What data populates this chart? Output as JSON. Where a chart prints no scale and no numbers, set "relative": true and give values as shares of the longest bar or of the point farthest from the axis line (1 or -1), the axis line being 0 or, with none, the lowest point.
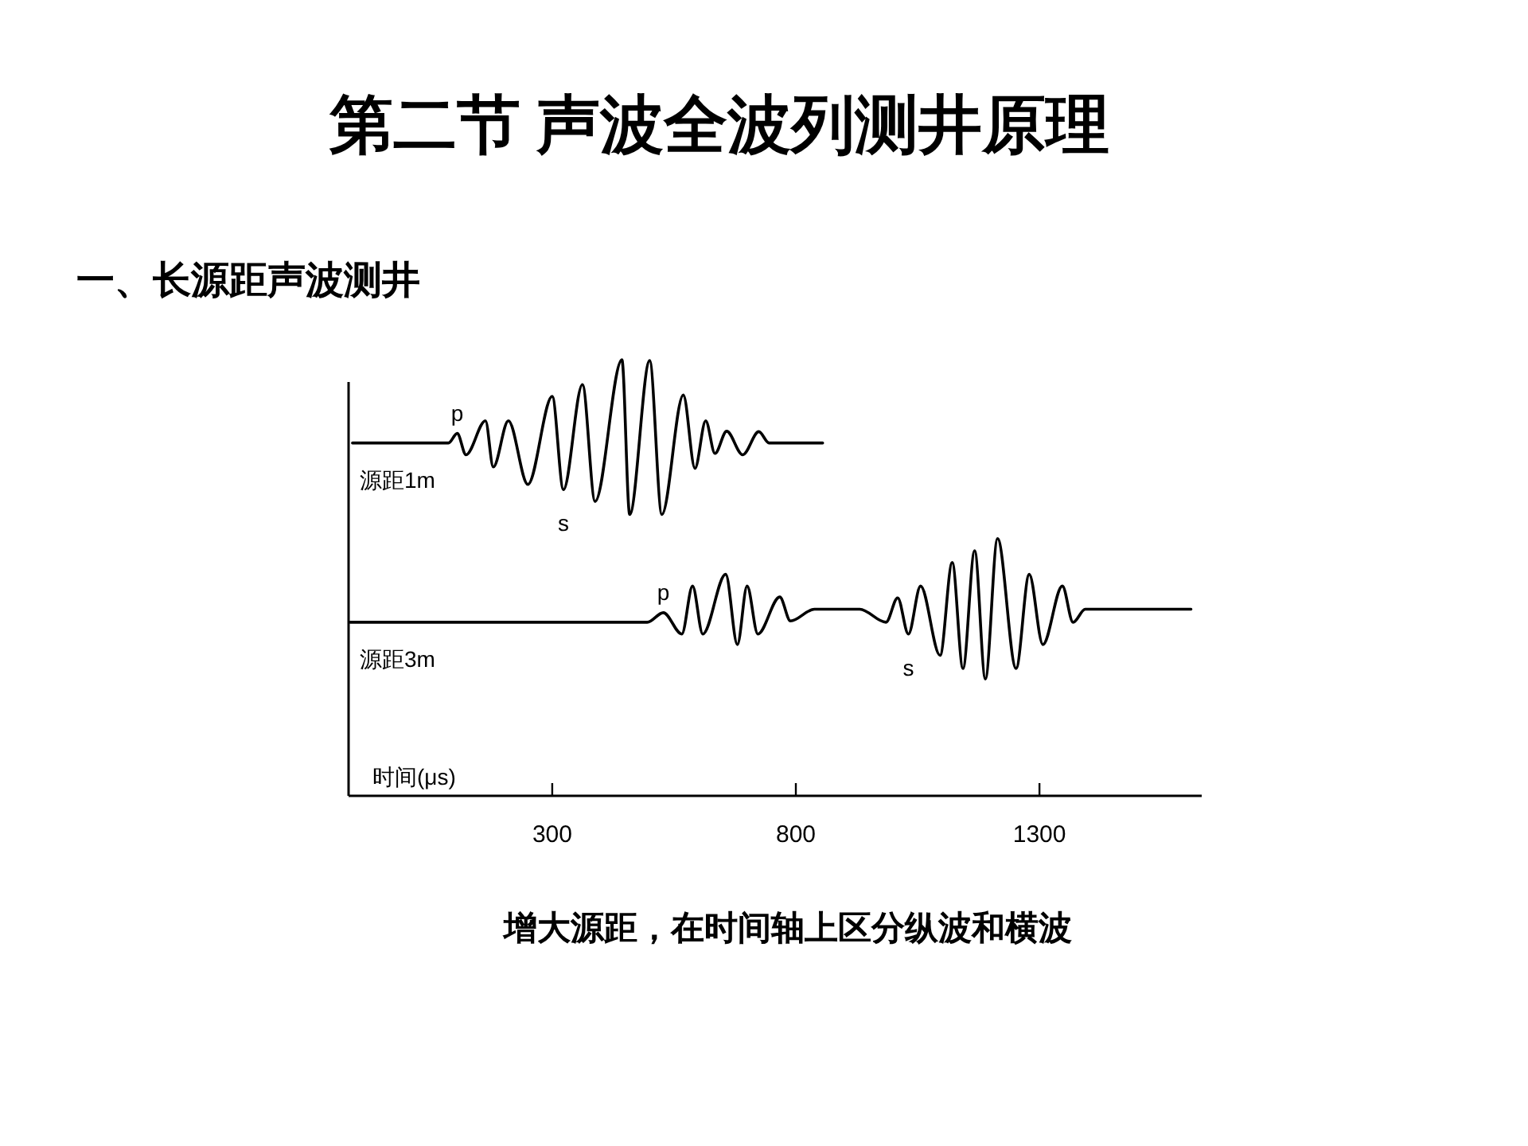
{
  "chart_data": {
    "type": "line",
    "title": "第二节  声波全波列测井原理",
    "subtitle": "一、长源距声波测井",
    "xlabel": "时间(μs)",
    "relative": true,
    "xlim": [
      -118,
      1633
    ],
    "xticks": [
      300,
      800,
      1300
    ],
    "grid": false,
    "legend": false,
    "marker": "none",
    "line_style": "solid",
    "annotations": [
      {
        "text": "p",
        "x": 105,
        "y": 0.831
      },
      {
        "text": "s",
        "x": 323,
        "y": 0.702
      },
      {
        "text": "p",
        "x": 528,
        "y": 0.42
      },
      {
        "text": "s",
        "x": 1031,
        "y": 0.371
      },
      "增大源距，在时间轴上区分纵波和横波"
    ],
    "series": [
      {
        "name": "源距1m",
        "color": "#000000",
        "x": [
          -110,
          87,
          105,
          123,
          163,
          179,
          210,
          250,
          300,
          323,
          362,
          388,
          443,
          459,
          500,
          525,
          569,
          593,
          615,
          634,
          658,
          691,
          724,
          745,
          855
        ],
        "values": [
          0.809,
          0.809,
          0.831,
          0.782,
          0.86,
          0.754,
          0.86,
          0.714,
          0.916,
          0.702,
          0.943,
          0.675,
          1.0,
          0.645,
          0.998,
          0.645,
          0.919,
          0.751,
          0.86,
          0.785,
          0.836,
          0.782,
          0.835,
          0.809,
          0.809
        ]
      },
      {
        "name": "源距3m",
        "color": "#000000",
        "x": [
          -115,
          408,
          495,
          528,
          566,
          588,
          609,
          656,
          680,
          700,
          722,
          767,
          789,
          838,
          931,
          985,
          1009,
          1031,
          1056,
          1096,
          1121,
          1143,
          1167,
          1189,
          1214,
          1252,
          1279,
          1307,
          1347,
          1369,
          1394,
          1611
        ],
        "values": [
          0.398,
          0.398,
          0.398,
          0.42,
          0.371,
          0.481,
          0.371,
          0.508,
          0.347,
          0.481,
          0.371,
          0.456,
          0.401,
          0.428,
          0.428,
          0.398,
          0.454,
          0.371,
          0.481,
          0.322,
          0.535,
          0.292,
          0.562,
          0.268,
          0.59,
          0.292,
          0.508,
          0.347,
          0.481,
          0.398,
          0.428,
          0.428
        ]
      }
    ]
  }
}
